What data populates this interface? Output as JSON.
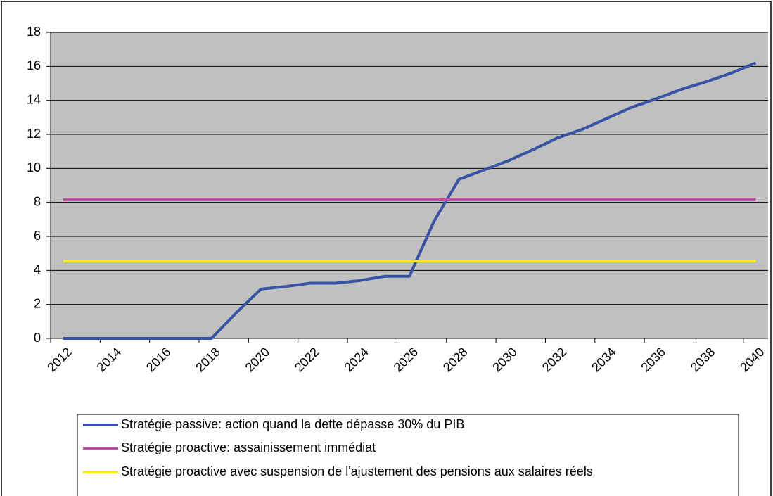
{
  "chart_data": {
    "type": "line",
    "categories": [
      "2012",
      null,
      "2014",
      null,
      "2016",
      null,
      "2018",
      null,
      "2020",
      null,
      "2022",
      null,
      "2024",
      null,
      "2026",
      null,
      "2028",
      null,
      "2030",
      null,
      "2032",
      null,
      "2034",
      null,
      "2036",
      null,
      "2038",
      null,
      "2040"
    ],
    "series": [
      {
        "name": "Stratégie passive: action quand la dette dépasse 30% du PIB",
        "color": "#3953a4",
        "values": [
          0,
          0,
          0,
          0,
          0,
          0,
          0,
          1.5,
          2.9,
          3.05,
          3.25,
          3.25,
          3.4,
          3.65,
          3.65,
          6.9,
          9.35,
          9.9,
          10.45,
          11.1,
          11.8,
          12.3,
          12.95,
          13.6,
          14.1,
          14.65,
          15.1,
          15.6,
          16.2
        ]
      },
      {
        "name": "Stratégie proactive: assainissement immédiat",
        "color": "#b5509e",
        "values": [
          8.15,
          8.15,
          8.15,
          8.15,
          8.15,
          8.15,
          8.15,
          8.15,
          8.15,
          8.15,
          8.15,
          8.15,
          8.15,
          8.15,
          8.15,
          8.15,
          8.15,
          8.15,
          8.15,
          8.15,
          8.15,
          8.15,
          8.15,
          8.15,
          8.15,
          8.15,
          8.15,
          8.15,
          8.15
        ]
      },
      {
        "name": "Stratégie proactive avec suspension de l'ajustement des pensions aux salaires réels",
        "color": "#f2ee1f",
        "values": [
          4.55,
          4.55,
          4.55,
          4.55,
          4.55,
          4.55,
          4.55,
          4.55,
          4.55,
          4.55,
          4.55,
          4.55,
          4.55,
          4.55,
          4.55,
          4.55,
          4.55,
          4.55,
          4.55,
          4.55,
          4.55,
          4.55,
          4.55,
          4.55,
          4.55,
          4.55,
          4.55,
          4.55,
          4.55
        ]
      }
    ],
    "ylim": [
      0,
      18
    ],
    "yticks": [
      0,
      2,
      4,
      6,
      8,
      10,
      12,
      14,
      16,
      18
    ],
    "grid": true,
    "legend": "bottom"
  }
}
